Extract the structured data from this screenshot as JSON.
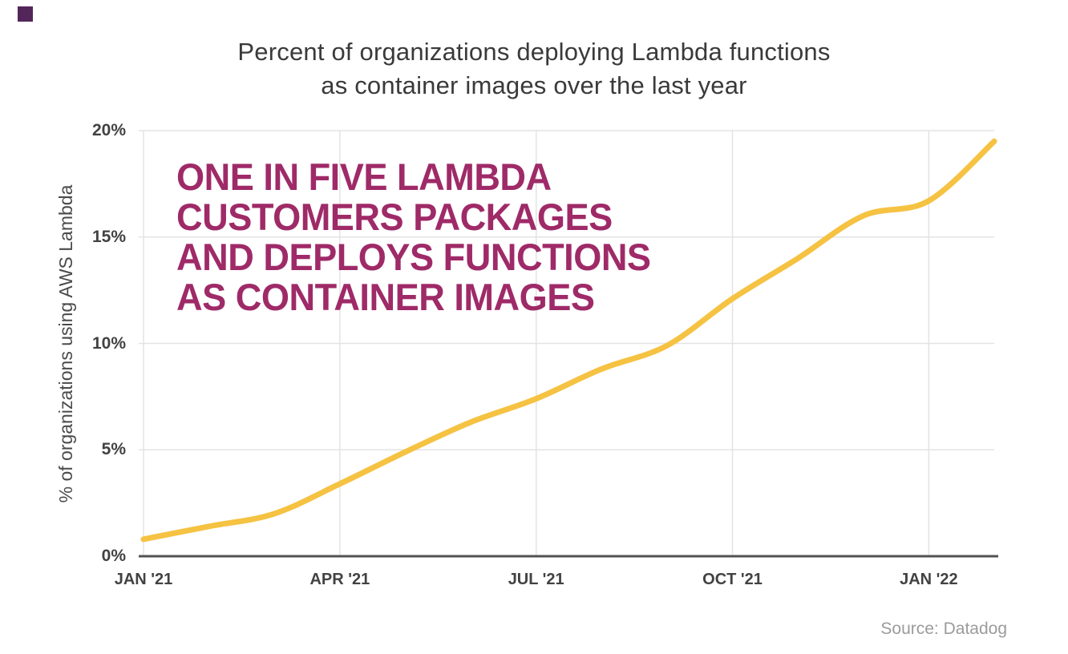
{
  "page": {
    "background": "#ffffff"
  },
  "logo": {
    "color": "#53265A"
  },
  "title": {
    "line1": "Percent of organizations deploying Lambda functions",
    "line2": "as container images over the last year",
    "color": "#3a3a3a"
  },
  "annotation": {
    "lines": [
      "ONE IN FIVE LAMBDA",
      "CUSTOMERS PACKAGES",
      "AND DEPLOYS FUNCTIONS",
      "AS CONTAINER IMAGES"
    ],
    "color": "#9F2A68"
  },
  "source": {
    "text": "Source: Datadog",
    "color": "#9b9b9b"
  },
  "chart_data": {
    "type": "line",
    "title": "Percent of organizations deploying Lambda functions as container images over the last year",
    "xlabel": "",
    "ylabel": "% of organizations using AWS Lambda",
    "ylim": [
      0,
      20
    ],
    "grid": true,
    "line_color": "#F5C242",
    "gridline_color": "#e3e3e3",
    "axis_color": "#525252",
    "x_tick_labels": [
      "JAN '21",
      "APR '21",
      "JUL '21",
      "OCT '21",
      "JAN '22"
    ],
    "x_tick_month_index": [
      0,
      3,
      6,
      9,
      12
    ],
    "y_tick_labels": [
      "0%",
      "5%",
      "10%",
      "15%",
      "20%"
    ],
    "y_tick_values": [
      0,
      5,
      10,
      15,
      20
    ],
    "series": [
      {
        "name": "% of organizations using AWS Lambda",
        "x": [
          "Jan '21",
          "Feb '21",
          "Mar '21",
          "Apr '21",
          "May '21",
          "Jun '21",
          "Jul '21",
          "Aug '21",
          "Sep '21",
          "Oct '21",
          "Nov '21",
          "Dec '21",
          "Jan '22",
          "Feb '22"
        ],
        "values": [
          0.8,
          1.4,
          2.0,
          3.4,
          4.9,
          6.3,
          7.4,
          8.8,
          9.9,
          12.1,
          14.0,
          16.0,
          16.7,
          19.5
        ]
      }
    ]
  }
}
